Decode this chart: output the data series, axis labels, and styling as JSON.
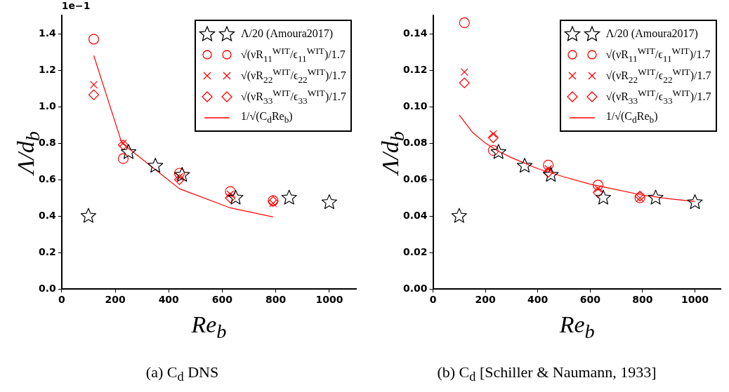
{
  "chart_data": [
    {
      "type": "scatter",
      "title": "(a) C$_{d}$ DNS",
      "xlabel": "Re$_{b}$",
      "ylabel": "Λ/d$_{b}$",
      "annotations": [
        "1e−1"
      ],
      "xlim": [
        0,
        1100
      ],
      "ylim": [
        0,
        1.5
      ],
      "xticks": [
        0,
        200,
        400,
        600,
        800,
        1000
      ],
      "yticks": [
        {
          "value": 0,
          "label": "0.0"
        },
        {
          "value": 0.2,
          "label": "0.2"
        },
        {
          "value": 0.4,
          "label": "0.4"
        },
        {
          "value": 0.6,
          "label": "0.6"
        },
        {
          "value": 0.8,
          "label": "0.8"
        },
        {
          "value": 1.0,
          "label": "1.0"
        },
        {
          "value": 1.2,
          "label": "1.2"
        },
        {
          "value": 1.4,
          "label": "1.4"
        }
      ],
      "grid": false,
      "legend": "top right",
      "series": [
        {
          "name": "Λ/20 (Amoura2017)",
          "type": "scatter",
          "marker": "star",
          "color": "#000000",
          "x": [
            100,
            250,
            350,
            450,
            650,
            850,
            1000
          ],
          "values": [
            0.4,
            0.75,
            0.675,
            0.625,
            0.5,
            0.5,
            0.475
          ]
        },
        {
          "name": "√(νR$_{11}$$^{WIT}$/ϵ$_{11}$$^{WIT}$)/1.7",
          "type": "scatter",
          "marker": "circle",
          "color": "#ff0000",
          "x": [
            120,
            230,
            440,
            630,
            790
          ],
          "values": [
            1.37,
            0.715,
            0.635,
            0.535,
            0.485
          ]
        },
        {
          "name": "√(νR$_{22}$$^{WIT}$/ϵ$_{22}$$^{WIT}$)/1.7",
          "type": "scatter",
          "marker": "cross",
          "color": "#ff0000",
          "x": [
            120,
            230,
            440,
            630,
            790
          ],
          "values": [
            1.12,
            0.8,
            0.615,
            0.52,
            0.47
          ]
        },
        {
          "name": "√(νR$_{33}$$^{WIT}$/ϵ$_{33}$$^{WIT}$)/1.7",
          "type": "scatter",
          "marker": "diamond",
          "color": "#ff0000",
          "x": [
            120,
            230,
            440,
            630,
            790
          ],
          "values": [
            1.065,
            0.79,
            0.6,
            0.5,
            0.48
          ]
        },
        {
          "name": "1/√(C$_{d}$Re$_{b}$)",
          "type": "line",
          "marker": "none",
          "line_style": "solid",
          "color": "#ff0000",
          "x": [
            120,
            225,
            440,
            630,
            790
          ],
          "values": [
            1.28,
            0.8,
            0.55,
            0.445,
            0.395
          ]
        }
      ]
    },
    {
      "type": "scatter",
      "title": "(b) C$_{d}$ [Schiller & Naumann, 1933]",
      "xlabel": "Re$_{b}$",
      "ylabel": "Λ/d$_{b}$",
      "xlim": [
        0,
        1100
      ],
      "ylim": [
        0,
        0.15
      ],
      "xticks": [
        0,
        200,
        400,
        600,
        800,
        1000
      ],
      "yticks": [
        {
          "value": 0,
          "label": "0.00"
        },
        {
          "value": 0.02,
          "label": "0.02"
        },
        {
          "value": 0.04,
          "label": "0.04"
        },
        {
          "value": 0.06,
          "label": "0.06"
        },
        {
          "value": 0.08,
          "label": "0.08"
        },
        {
          "value": 0.1,
          "label": "0.10"
        },
        {
          "value": 0.12,
          "label": "0.12"
        },
        {
          "value": 0.14,
          "label": "0.14"
        }
      ],
      "grid": false,
      "legend": "top right",
      "series": [
        {
          "name": "Λ/20 (Amoura2017)",
          "type": "scatter",
          "marker": "star",
          "color": "#000000",
          "x": [
            100,
            250,
            350,
            450,
            650,
            850,
            1000
          ],
          "values": [
            0.04,
            0.075,
            0.0675,
            0.0625,
            0.05,
            0.05,
            0.0475
          ]
        },
        {
          "name": "√(νR$_{11}$$^{WIT}$/ϵ$_{11}$$^{WIT}$)/1.7",
          "type": "scatter",
          "marker": "circle",
          "color": "#ff0000",
          "x": [
            120,
            230,
            440,
            630,
            790
          ],
          "values": [
            0.146,
            0.076,
            0.068,
            0.057,
            0.05
          ]
        },
        {
          "name": "√(νR$_{22}$$^{WIT}$/ϵ$_{22}$$^{WIT}$)/1.7",
          "type": "scatter",
          "marker": "cross",
          "color": "#ff0000",
          "x": [
            120,
            230,
            440,
            630,
            790
          ],
          "values": [
            0.119,
            0.085,
            0.066,
            0.055,
            0.05
          ]
        },
        {
          "name": "√(νR$_{33}$$^{WIT}$/ϵ$_{33}$$^{WIT}$)/1.7",
          "type": "scatter",
          "marker": "diamond",
          "color": "#ff0000",
          "x": [
            120,
            230,
            440,
            630,
            790
          ],
          "values": [
            0.113,
            0.083,
            0.064,
            0.053,
            0.051
          ]
        },
        {
          "name": "1/√(C$_{d}$Re$_{b}$)",
          "type": "line",
          "marker": "none",
          "line_style": "solid",
          "color": "#ff0000",
          "x": [
            100,
            150,
            200,
            250,
            300,
            400,
            500,
            600,
            700,
            800,
            900,
            1000
          ],
          "values": [
            0.0955,
            0.086,
            0.08,
            0.0755,
            0.072,
            0.066,
            0.0615,
            0.0575,
            0.0545,
            0.0515,
            0.0495,
            0.048
          ]
        }
      ]
    }
  ]
}
